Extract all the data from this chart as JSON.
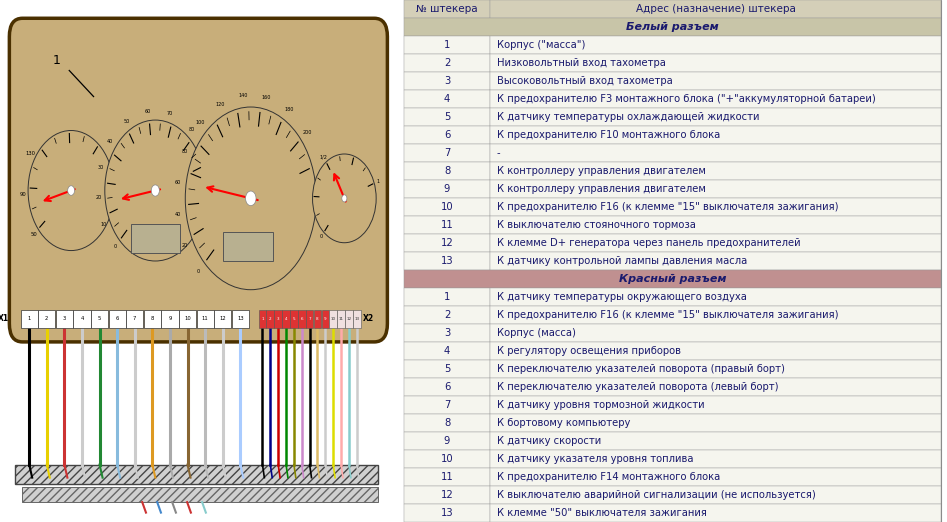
{
  "header_col1": "№ штекера",
  "header_col2": "Адрес (назначение) штекера",
  "white_header": "Белый разъем",
  "red_header": "Красный разъем",
  "white_rows": [
    [
      1,
      "Корпус (\"масса\")"
    ],
    [
      2,
      "Низковольтный вход тахометра"
    ],
    [
      3,
      "Высоковольтный вход тахометра"
    ],
    [
      4,
      "К предохранителю F3 монтажного блока (\"+\"аккумуляторной батареи)"
    ],
    [
      5,
      "К датчику температуры охлаждающей жидкости"
    ],
    [
      6,
      "К предохранителю F10 монтажного блока"
    ],
    [
      7,
      "-"
    ],
    [
      8,
      "К контроллеру управления двигателем"
    ],
    [
      9,
      "К контроллеру управления двигателем"
    ],
    [
      10,
      "К предохранителю F16 (к клемме \"15\" выключателя зажигания)"
    ],
    [
      11,
      "К выключателю стояночного тормоза"
    ],
    [
      12,
      "К клемме D+ генератора через панель предохранителей"
    ],
    [
      13,
      "К датчику контрольной лампы давления масла"
    ]
  ],
  "red_rows": [
    [
      1,
      "К датчику температуры окружающего воздуха"
    ],
    [
      2,
      "К предохранителю F16 (к клемме \"15\" выключателя зажигания)"
    ],
    [
      3,
      "Корпус (масса)"
    ],
    [
      4,
      "К регулятору освещения приборов"
    ],
    [
      5,
      "К переключателю указателей поворота (правый борт)"
    ],
    [
      6,
      "К переключателю указателей поворота (левый борт)"
    ],
    [
      7,
      "К датчику уровня тормозной жидкости"
    ],
    [
      8,
      "К бортовому компьютеру"
    ],
    [
      9,
      "К датчику скорости"
    ],
    [
      10,
      "К датчику указателя уровня топлива"
    ],
    [
      11,
      "К предохранителю F14 монтажного блока"
    ],
    [
      12,
      "К выключателю аварийной сигнализации (не используется)"
    ],
    [
      13,
      "К клемме \"50\" выключателя зажигания"
    ]
  ],
  "bg_color": "#ffffff",
  "header_bg": "#d4cfb8",
  "white_section_bg": "#c8c5a8",
  "red_section_bg": "#c09090",
  "text_color": "#1a1a6e",
  "gauge_bg": "#c8ae7a",
  "cluster_bg": "#c8ae7a",
  "cluster_edge": "#4a3000",
  "wire_colors_x1": [
    "#000000",
    "#e8d000",
    "#cc3333",
    "#cccccc",
    "#228833",
    "#88bbdd",
    "#cccccc",
    "#dd9922",
    "#aaaaaa",
    "#886633",
    "#bbbbbb",
    "#cccccc",
    "#aaccff"
  ],
  "wire_colors_x2": [
    "#000000",
    "#000088",
    "#cc0000",
    "#008800",
    "#888800",
    "#cc88cc",
    "#000000",
    "#ddbb66",
    "#cccccc",
    "#dddd00",
    "#ffaaaa",
    "#88cccc",
    "#cccccc"
  ]
}
